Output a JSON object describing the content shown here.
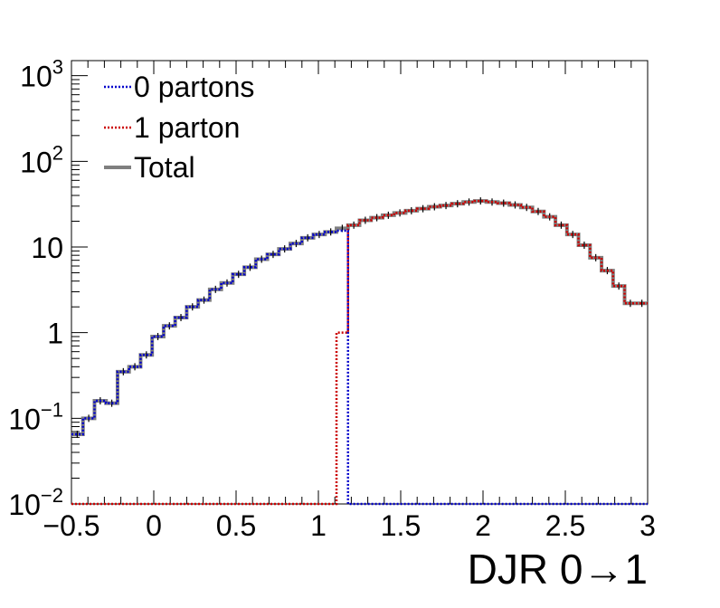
{
  "chart_data": {
    "type": "line",
    "title": "",
    "xlabel": "DJR 0→1",
    "ylabel": "",
    "xlim": [
      -0.5,
      3.0
    ],
    "ylim": [
      0.01,
      1500
    ],
    "yscale": "log",
    "grid": false,
    "legend_position": "top-left",
    "x_ticks": [
      {
        "v": -0.5,
        "label": "−0.5"
      },
      {
        "v": 0,
        "label": "0"
      },
      {
        "v": 0.5,
        "label": "0.5"
      },
      {
        "v": 1,
        "label": "1"
      },
      {
        "v": 1.5,
        "label": "1.5"
      },
      {
        "v": 2,
        "label": "2"
      },
      {
        "v": 2.5,
        "label": "2.5"
      },
      {
        "v": 3,
        "label": "3"
      }
    ],
    "y_ticks": [
      {
        "v": 0.01,
        "base": "10",
        "exp": "−2"
      },
      {
        "v": 0.1,
        "base": "10",
        "exp": "−1"
      },
      {
        "v": 1,
        "base": "1",
        "exp": ""
      },
      {
        "v": 10,
        "base": "10",
        "exp": ""
      },
      {
        "v": 100,
        "base": "10",
        "exp": "2"
      },
      {
        "v": 1000,
        "base": "10",
        "exp": "3"
      }
    ],
    "bin_edges_start": -0.5,
    "bin_width": 0.07,
    "series": [
      {
        "name": "0 partons",
        "color": "#0000cc",
        "style": "dotted",
        "values": [
          0.065,
          0.1,
          0.16,
          0.15,
          0.35,
          0.4,
          0.55,
          0.9,
          1.2,
          1.5,
          2.0,
          2.4,
          3.2,
          3.8,
          4.8,
          5.8,
          7.2,
          8.2,
          9.5,
          11.0,
          12.8,
          14.0,
          15.0,
          15.5,
          0.01,
          0.01,
          0.01,
          0.01,
          0.01,
          0.01,
          0.01,
          0.01,
          0.01,
          0.01,
          0.01,
          0.01,
          0.01,
          0.01,
          0.01,
          0.01,
          0.01,
          0.01,
          0.01,
          0.01,
          0.01,
          0.01,
          0.01,
          0.01,
          0.01,
          0.01
        ]
      },
      {
        "name": "1 parton",
        "color": "#cc0000",
        "style": "dotted",
        "values": [
          0.01,
          0.01,
          0.01,
          0.01,
          0.01,
          0.01,
          0.01,
          0.01,
          0.01,
          0.01,
          0.01,
          0.01,
          0.01,
          0.01,
          0.01,
          0.01,
          0.01,
          0.01,
          0.01,
          0.01,
          0.01,
          0.01,
          0.01,
          1.0,
          18.0,
          20.5,
          22.0,
          23.5,
          25.0,
          26.5,
          28.0,
          29.5,
          30.5,
          32.0,
          33.5,
          34.5,
          33.5,
          32.5,
          31.0,
          29.0,
          26.0,
          22.5,
          18.0,
          14.0,
          10.5,
          7.5,
          5.3,
          3.5,
          2.2,
          2.2
        ]
      },
      {
        "name": "Total",
        "color": "#7f7f7f",
        "style": "solid",
        "values": [
          0.065,
          0.1,
          0.16,
          0.15,
          0.35,
          0.4,
          0.55,
          0.9,
          1.2,
          1.5,
          2.0,
          2.4,
          3.2,
          3.8,
          4.8,
          5.8,
          7.2,
          8.2,
          9.5,
          11.0,
          12.8,
          14.0,
          15.0,
          16.5,
          18.0,
          20.5,
          22.0,
          23.5,
          25.0,
          26.5,
          28.0,
          29.5,
          30.5,
          32.0,
          33.5,
          34.5,
          33.5,
          32.5,
          31.0,
          29.0,
          26.0,
          22.5,
          18.0,
          14.0,
          10.5,
          7.5,
          5.3,
          3.5,
          2.2,
          2.2
        ]
      }
    ]
  }
}
